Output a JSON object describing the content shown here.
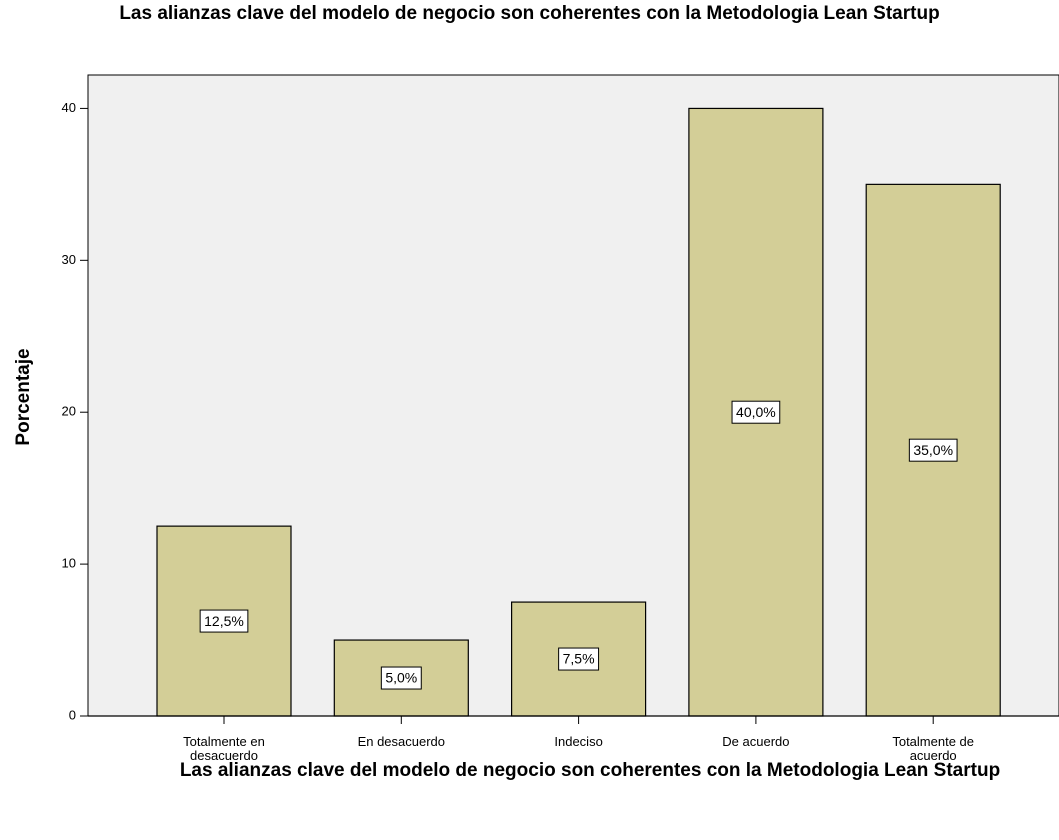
{
  "chart_data": {
    "type": "bar",
    "title": "Las alianzas clave del  modelo de negocio son coherentes con la Metodologia Lean Startup",
    "x_label": "Las alianzas clave del  modelo de negocio son coherentes con la Metodologia Lean Startup",
    "y_label": "Porcentaje",
    "categories": [
      "Totalmente en desacuerdo",
      "En desacuerdo",
      "Indeciso",
      "De acuerdo",
      "Totalmente de acuerdo"
    ],
    "values": [
      12.5,
      5.0,
      7.5,
      40.0,
      35.0
    ],
    "value_labels": [
      "12,5%",
      "5,0%",
      "7,5%",
      "40,0%",
      "35,0%"
    ],
    "color": "#d3ce97",
    "ylim": [
      0,
      42.2
    ],
    "yticks": [
      0,
      10,
      20,
      30,
      40
    ],
    "grid": false
  }
}
